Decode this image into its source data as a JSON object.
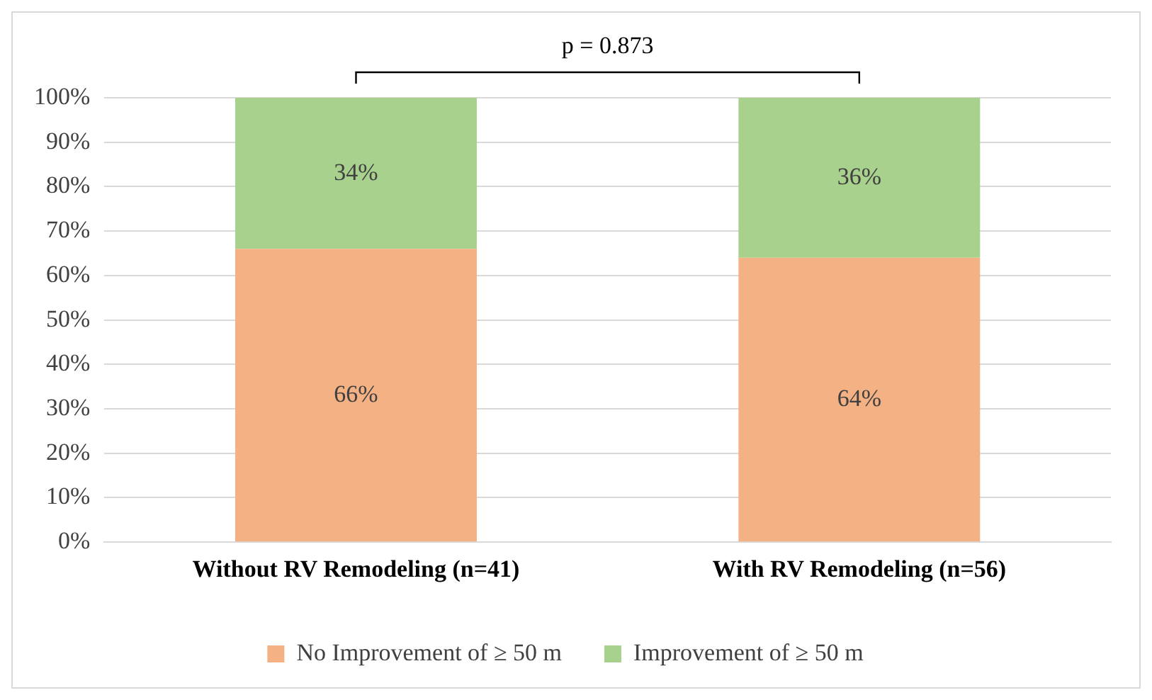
{
  "chart_data": {
    "type": "bar",
    "stacked": true,
    "categories": [
      "Without RV Remodeling (n=41)",
      "With RV Remodeling (n=56)"
    ],
    "series": [
      {
        "name": "No Improvement of ≥ 50 m",
        "color": "#f4b183",
        "values": [
          66,
          64
        ],
        "value_labels": [
          "66%",
          "64%"
        ]
      },
      {
        "name": "Improvement of ≥ 50 m",
        "color": "#a9d18e",
        "values": [
          34,
          36
        ],
        "value_labels": [
          "34%",
          "36%"
        ]
      }
    ],
    "ylim": [
      0,
      100
    ],
    "yticks": [
      {
        "value": 0,
        "label": "0%"
      },
      {
        "value": 10,
        "label": "10%"
      },
      {
        "value": 20,
        "label": "20%"
      },
      {
        "value": 30,
        "label": "30%"
      },
      {
        "value": 40,
        "label": "40%"
      },
      {
        "value": 50,
        "label": "50%"
      },
      {
        "value": 60,
        "label": "60%"
      },
      {
        "value": 70,
        "label": "70%"
      },
      {
        "value": 80,
        "label": "80%"
      },
      {
        "value": 90,
        "label": "90%"
      },
      {
        "value": 100,
        "label": "100%"
      }
    ],
    "grid": "y",
    "legend": "bottom",
    "annotations": [
      "p = 0.873"
    ]
  }
}
